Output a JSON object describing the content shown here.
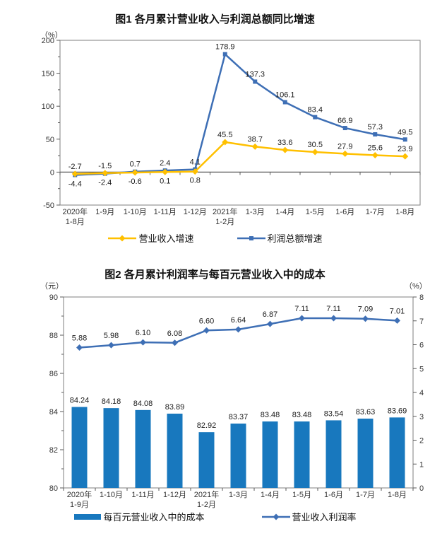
{
  "chart_data": [
    {
      "type": "line",
      "title": "图1  各月累计营业收入与利润总额同比增速",
      "y_unit": "（%）",
      "ylim": [
        -50,
        200
      ],
      "y_ticks": [
        200,
        150,
        100,
        50,
        0,
        -50
      ],
      "grid": false,
      "legend_position": "bottom",
      "categories": [
        "2020年\n1-8月",
        "1-9月",
        "1-10月",
        "1-11月",
        "1-12月",
        "2021年\n1-2月",
        "1-3月",
        "1-4月",
        "1-5月",
        "1-6月",
        "1-7月",
        "1-8月"
      ],
      "series": [
        {
          "name": "营业收入增速",
          "color": "#FFC000",
          "marker": "diamond",
          "label_decimals": 1,
          "values": [
            -2.7,
            -1.5,
            -0.6,
            0.1,
            0.8,
            45.5,
            38.7,
            33.6,
            30.5,
            27.9,
            25.6,
            23.9
          ]
        },
        {
          "name": "利润总额增速",
          "color": "#3E6FB5",
          "marker": "square",
          "label_decimals": 1,
          "values": [
            -4.4,
            -2.4,
            0.7,
            2.4,
            4.1,
            178.9,
            137.3,
            106.1,
            83.4,
            66.9,
            57.3,
            49.5
          ]
        }
      ]
    },
    {
      "type": "bar+line",
      "title": "图2  各月累计利润率与每百元营业收入中的成本",
      "left_unit": "（元）",
      "right_unit": "（%）",
      "left_ylim": [
        80,
        90
      ],
      "left_ticks": [
        90,
        88,
        86,
        84,
        82,
        80
      ],
      "right_ylim": [
        0,
        8
      ],
      "right_ticks": [
        8,
        7,
        6,
        5,
        4,
        3,
        2,
        1,
        0
      ],
      "grid": false,
      "legend_position": "bottom",
      "categories": [
        "2020年\n1-9月",
        "1-10月",
        "1-11月",
        "1-12月",
        "2021年\n1-2月",
        "1-3月",
        "1-4月",
        "1-5月",
        "1-6月",
        "1-7月",
        "1-8月"
      ],
      "series": [
        {
          "name": "每百元营业收入中的成本",
          "type": "bar",
          "axis": "left",
          "color": "#1878BE",
          "label_decimals": 2,
          "values": [
            84.24,
            84.18,
            84.08,
            83.89,
            82.92,
            83.37,
            83.48,
            83.48,
            83.54,
            83.63,
            83.69
          ]
        },
        {
          "name": "营业收入利润率",
          "type": "line",
          "axis": "right",
          "color": "#3E6FB5",
          "marker": "diamond",
          "label_decimals": 2,
          "values": [
            5.88,
            5.98,
            6.1,
            6.08,
            6.6,
            6.64,
            6.87,
            7.11,
            7.11,
            7.09,
            7.01
          ]
        }
      ]
    }
  ],
  "style": {
    "border_color": "#7f7f7f",
    "axis_color": "#595959",
    "tick_text_color": "#333333",
    "label_text_color": "#1a1a1a"
  }
}
